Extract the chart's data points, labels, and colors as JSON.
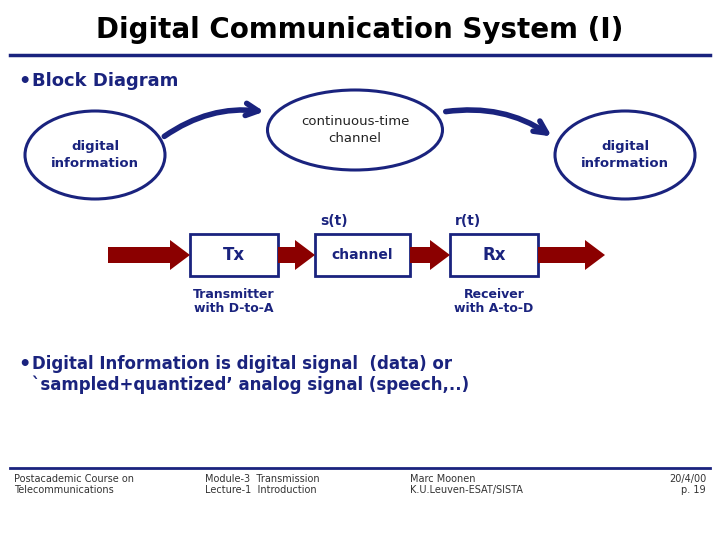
{
  "title": "Digital Communication System (I)",
  "bg_color": "#ffffff",
  "title_color": "#000000",
  "dark_blue": "#1a237e",
  "dark_red": "#8b0000",
  "bullet1": "Block Diagram",
  "bullet2_line1": "Digital Information is digital signal  (data) or",
  "bullet2_line2": "`sampled+quantized’ analog signal (speech,..)",
  "label_st": "s(t)",
  "label_rt": "r(t)",
  "label_tx": "Tx",
  "label_channel": "channel",
  "label_rx": "Rx",
  "label_dig_info": "digital\ninformation",
  "label_continuous": "continuous-time\nchannel",
  "label_transmitter1": "Transmitter",
  "label_transmitter2": "with D-to-A",
  "label_receiver1": "Receiver",
  "label_receiver2": "with A-to-D",
  "footer_left1": "Postacademic Course on",
  "footer_left2": "Telecommunications",
  "footer_mid1": "Module-3  Transmission",
  "footer_mid2": "Lecture-1  Introduction",
  "footer_mid3": "Marc Moonen",
  "footer_mid4": "K.U.Leuven-ESAT/SISTA",
  "footer_right1": "20/4/00",
  "footer_right2": "p. 19"
}
